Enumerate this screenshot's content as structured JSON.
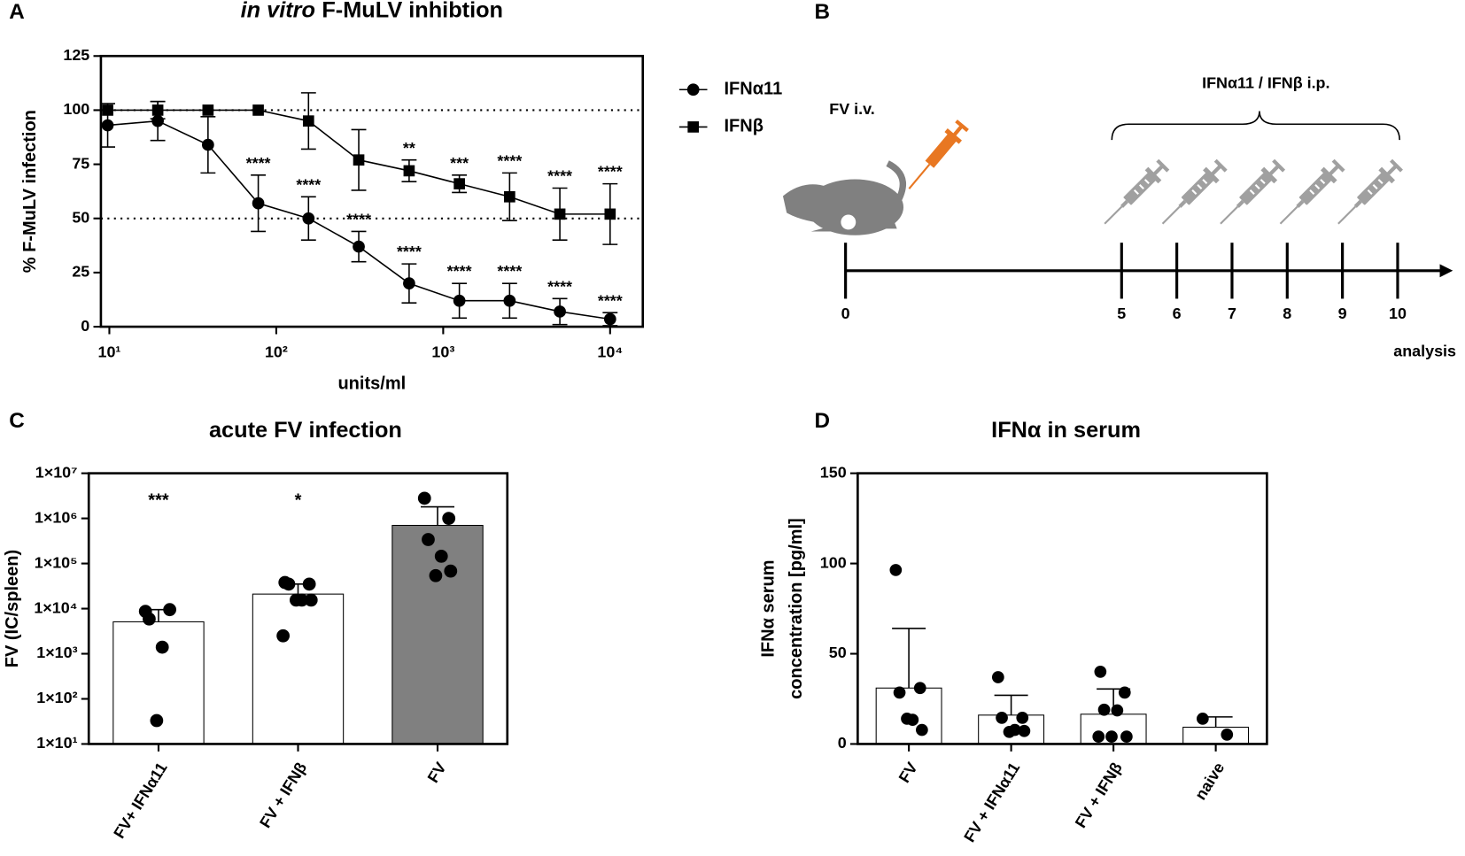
{
  "chart_data": [
    {
      "type": "line",
      "panel_label": "A",
      "title_italic": "in vitro",
      "title": "F-MuLV inhibtion",
      "xlabel": "units/ml",
      "ylabel": "% F-MuLV infection",
      "xscale": "log",
      "xlim": [
        8.9,
        15700
      ],
      "xticks": [
        {
          "value": 10,
          "label": "10¹"
        },
        {
          "value": 100,
          "label": "10²"
        },
        {
          "value": 1000,
          "label": "10³"
        },
        {
          "value": 10000,
          "label": "10⁴"
        }
      ],
      "ylim": [
        0,
        125
      ],
      "yticks": [
        0,
        25,
        50,
        75,
        100,
        125
      ],
      "reference_lines": [
        100,
        50
      ],
      "x": [
        9.77,
        19.5,
        39,
        78,
        156,
        312,
        625,
        1250,
        2500,
        5000,
        10000
      ],
      "series": [
        {
          "name": "IFNα11",
          "marker": "circle",
          "color": "#000000",
          "values": [
            93,
            95,
            84,
            57,
            50,
            37,
            20,
            12,
            12,
            7,
            3.5
          ],
          "errors": [
            10,
            9,
            13,
            13,
            10,
            7,
            9,
            8,
            8,
            6,
            3
          ],
          "significance": [
            null,
            null,
            null,
            "****",
            "****",
            "****",
            "****",
            "****",
            "****",
            "****",
            "****"
          ]
        },
        {
          "name": "IFNβ",
          "marker": "square",
          "color": "#000000",
          "values": [
            100,
            100,
            100,
            100,
            95,
            77,
            72,
            66,
            60,
            52,
            52
          ],
          "errors": [
            0,
            4,
            0,
            0,
            13,
            14,
            5,
            4,
            11,
            12,
            14
          ],
          "significance": [
            null,
            null,
            null,
            null,
            null,
            null,
            "**",
            "***",
            "****",
            "****",
            "****"
          ]
        }
      ]
    },
    {
      "type": "timeline",
      "panel_label": "B",
      "xlim": [
        0,
        11
      ],
      "xticks": [
        0,
        5,
        6,
        7,
        8,
        9,
        10
      ],
      "annotations": [
        "FV i.v.",
        "IFNα11 / IFNβ i.p.",
        "analysis"
      ]
    },
    {
      "type": "bar",
      "panel_label": "C",
      "title": "acute FV infection",
      "ylabel": "FV (IC/spleen)",
      "yscale": "log",
      "ylim": [
        10,
        10000000
      ],
      "yticks": [
        {
          "value": 10,
          "label": "1×10¹"
        },
        {
          "value": 100,
          "label": "1×10²"
        },
        {
          "value": 1000,
          "label": "1×10³"
        },
        {
          "value": 10000,
          "label": "1×10⁴"
        },
        {
          "value": 100000,
          "label": "1×10⁵"
        },
        {
          "value": 1000000,
          "label": "1×10⁶"
        },
        {
          "value": 10000000,
          "label": "1×10⁷"
        }
      ],
      "categories": [
        "FV+ IFNα11",
        "FV + IFNβ",
        "FV"
      ],
      "values": [
        5100,
        21000,
        700000
      ],
      "errors": [
        4400,
        14000,
        1100000
      ],
      "colors": [
        "#ffffff",
        "#ffffff",
        "#808080"
      ],
      "points": [
        [
          8700,
          9500,
          5900,
          1400,
          33
        ],
        [
          38000,
          35000,
          35000,
          15500,
          15500,
          15500,
          2500
        ],
        [
          2800000,
          1000000,
          340000,
          145000,
          54000,
          68000
        ]
      ],
      "significance": [
        "***",
        "*",
        null
      ]
    },
    {
      "type": "bar",
      "panel_label": "D",
      "title": "IFNα in serum",
      "ylabel": [
        "IFNα serum",
        "concentration [pg/ml]"
      ],
      "ylim": [
        0,
        150
      ],
      "yticks": [
        0,
        50,
        100,
        150
      ],
      "categories": [
        "FV",
        "FV + IFNα11",
        "FV + IFNβ",
        "naive"
      ],
      "values": [
        31,
        16,
        16.5,
        9.3
      ],
      "errors": [
        33,
        11,
        14,
        5.7
      ],
      "colors": [
        "#ffffff",
        "#ffffff",
        "#ffffff",
        "#ffffff"
      ],
      "points": [
        [
          96.4,
          31,
          28.5,
          13.4,
          14,
          7.8
        ],
        [
          37,
          14.5,
          14.5,
          7.8,
          6.7,
          7.2
        ],
        [
          40,
          28.5,
          19,
          18.6,
          4.1,
          4.1,
          4.1
        ],
        [
          14,
          5.2
        ]
      ]
    }
  ]
}
